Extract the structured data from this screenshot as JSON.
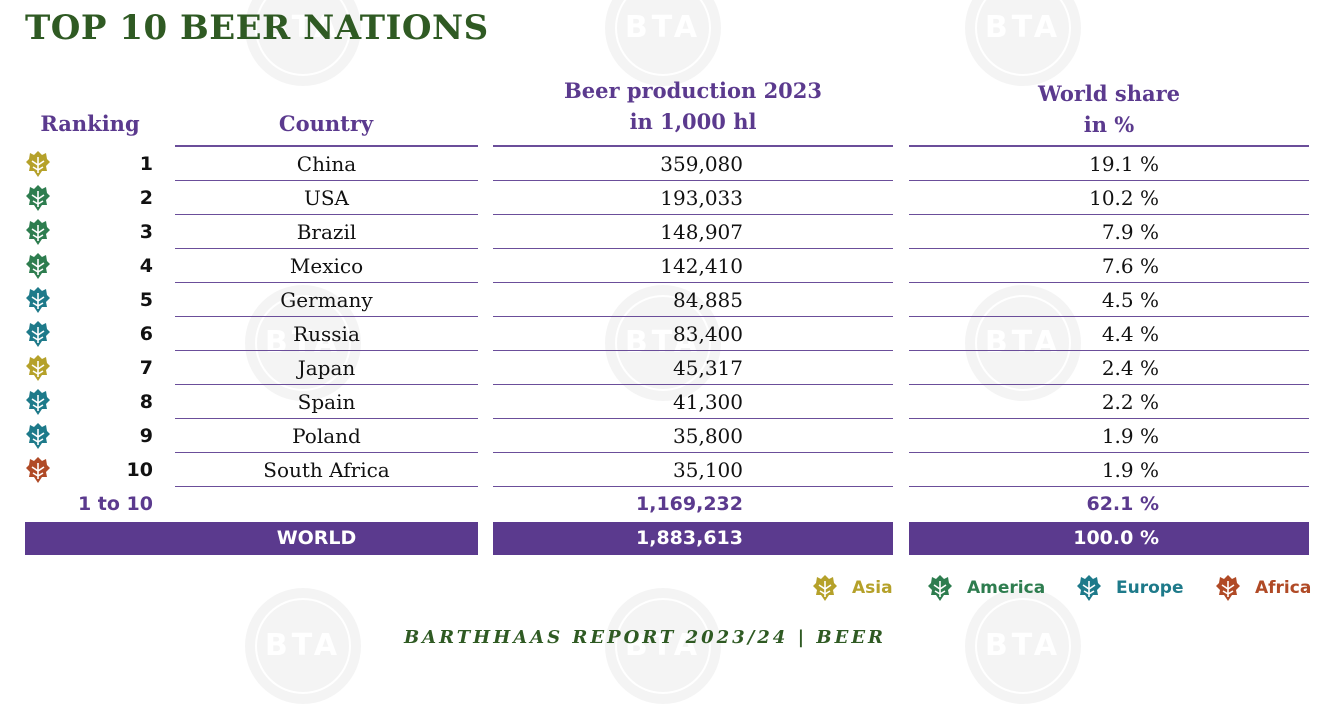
{
  "title": "TOP 10 BEER NATIONS",
  "watermark": "BTA",
  "headers": {
    "ranking": "Ranking",
    "country": "Country",
    "production_l1": "Beer production 2023",
    "production_l2": "in 1,000 hl",
    "share_l1": "World share",
    "share_l2": "in %"
  },
  "rows": [
    {
      "rank": "1",
      "country": "China",
      "production": "359,080",
      "share": "19.1 %",
      "region": "Asia",
      "color": "#b5a12a"
    },
    {
      "rank": "2",
      "country": "USA",
      "production": "193,033",
      "share": "10.2 %",
      "region": "America",
      "color": "#2e7d4f"
    },
    {
      "rank": "3",
      "country": "Brazil",
      "production": "148,907",
      "share": "7.9 %",
      "region": "America",
      "color": "#2e7d4f"
    },
    {
      "rank": "4",
      "country": "Mexico",
      "production": "142,410",
      "share": "7.6 %",
      "region": "America",
      "color": "#2e7d4f"
    },
    {
      "rank": "5",
      "country": "Germany",
      "production": "84,885",
      "share": "4.5 %",
      "region": "Europe",
      "color": "#1e7a8a"
    },
    {
      "rank": "6",
      "country": "Russia",
      "production": "83,400",
      "share": "4.4 %",
      "region": "Europe",
      "color": "#1e7a8a"
    },
    {
      "rank": "7",
      "country": "Japan",
      "production": "45,317",
      "share": "2.4 %",
      "region": "Asia",
      "color": "#b5a12a"
    },
    {
      "rank": "8",
      "country": "Spain",
      "production": "41,300",
      "share": "2.2 %",
      "region": "Europe",
      "color": "#1e7a8a"
    },
    {
      "rank": "9",
      "country": "Poland",
      "production": "35,800",
      "share": "1.9 %",
      "region": "Europe",
      "color": "#1e7a8a"
    },
    {
      "rank": "10",
      "country": "South Africa",
      "production": "35,100",
      "share": "1.9 %",
      "region": "Africa",
      "color": "#b04a26"
    }
  ],
  "subtotal": {
    "label": "1 to 10",
    "production": "1,169,232",
    "share": "62.1 %"
  },
  "world": {
    "label": "WORLD",
    "production": "1,883,613",
    "share": "100.0 %"
  },
  "legend": [
    {
      "label": "Asia",
      "color": "#b5a12a",
      "icon": "hop-icon"
    },
    {
      "label": "America",
      "color": "#2e7d4f",
      "icon": "hop-icon"
    },
    {
      "label": "Europe",
      "color": "#1e7a8a",
      "icon": "hop-icon"
    },
    {
      "label": "Africa",
      "color": "#b04a26",
      "icon": "hop-icon"
    }
  ],
  "footer": "BARTHHAAS REPORT 2023/24 | BEER",
  "colors": {
    "purple": "#5b3a8e",
    "title_green": "#2f5a23"
  }
}
